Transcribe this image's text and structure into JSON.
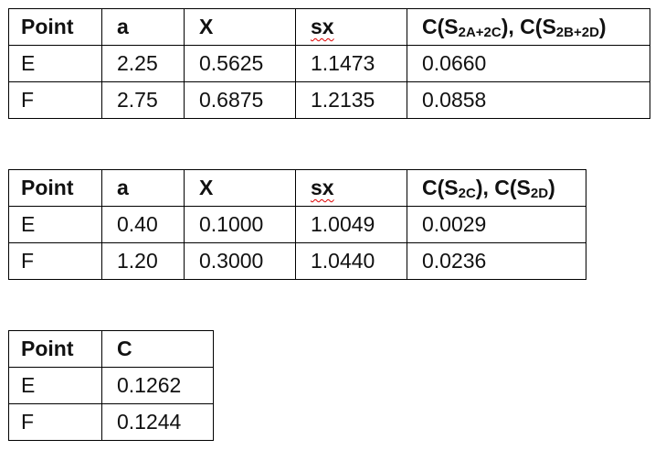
{
  "tables": [
    {
      "header": [
        "Point",
        "a",
        "X",
        "sx",
        [
          "C(S",
          "2A+2C",
          "), C(S",
          "2B+2D",
          ")"
        ]
      ],
      "rows": [
        [
          "E",
          "2.25",
          "0.5625",
          "1.1473",
          "0.0660"
        ],
        [
          "F",
          "2.75",
          "0.6875",
          "1.2135",
          "0.0858"
        ]
      ]
    },
    {
      "header": [
        "Point",
        "a",
        "X",
        "sx",
        [
          "C(S",
          "2C",
          "), C(S",
          "2D",
          ")"
        ]
      ],
      "rows": [
        [
          "E",
          "0.40",
          "0.1000",
          "1.0049",
          "0.0029"
        ],
        [
          "F",
          "1.20",
          "0.3000",
          "1.0440",
          "0.0236"
        ]
      ]
    },
    {
      "header": [
        "Point",
        "C"
      ],
      "rows": [
        [
          "E",
          "0.1262"
        ],
        [
          "F",
          "0.1244"
        ]
      ]
    }
  ]
}
